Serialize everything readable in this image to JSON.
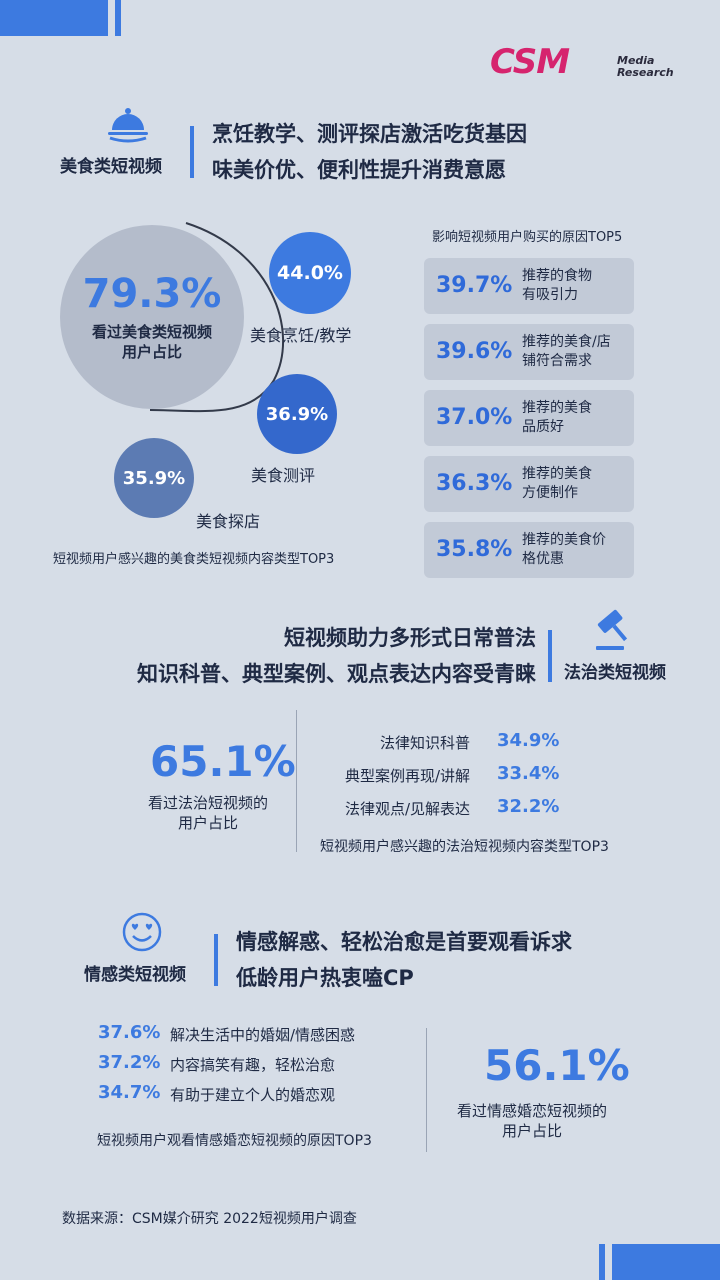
{
  "brand": {
    "name": "CSM",
    "sub_line1": "Media",
    "sub_line2": "Research",
    "color": "#d6246e"
  },
  "colors": {
    "accent": "#3d7ae0",
    "dark_blue": "#2f6ad9",
    "gray_bubble": "#b4bccb",
    "slate_bubble": "#5c7bb3"
  },
  "food": {
    "label": "美食类短视频",
    "icon": "cloche-icon",
    "title_line1": "烹饪教学、测评探店激活吃货基因",
    "title_line2": "味美价优、便利性提升消费意愿",
    "reasons_title": "影响短视频用户购买的原因TOP5",
    "content_caption": "短视频用户感兴趣的美食类短视频内容类型TOP3"
  },
  "law": {
    "label": "法治类短视频",
    "icon": "gavel-icon",
    "title_line1": "短视频助力多形式日常普法",
    "title_line2": "知识科普、典型案例、观点表达内容受青睐",
    "content_caption": "短视频用户感兴趣的法治短视频内容类型TOP3"
  },
  "emotion": {
    "label": "情感类短视频",
    "icon": "smile-heart-eyes-icon",
    "title_line1": "情感解惑、轻松治愈是首要观看诉求",
    "title_line2": "低龄用户热衷嗑CP",
    "reasons_caption": "短视频用户观看情感婚恋短视频的原因TOP3"
  },
  "source": "数据来源：CSM媒介研究 2022短视频用户调查",
  "chart_data": [
    {
      "type": "bar",
      "section": "food",
      "headline_value": "79.3%",
      "headline_label_line1": "看过美食类短视频",
      "headline_label_line2": "用户占比",
      "categories": [
        "美食烹饪/教学",
        "美食测评",
        "美食探店"
      ],
      "values": [
        44.0,
        36.9,
        35.9
      ],
      "value_labels": [
        "44.0%",
        "36.9%",
        "35.9%"
      ],
      "unit": "%"
    },
    {
      "type": "table",
      "section": "food",
      "categories": [
        [
          "推荐的食物",
          "有吸引力"
        ],
        [
          "推荐的美食/店",
          "铺符合需求"
        ],
        [
          "推荐的美食",
          "品质好"
        ],
        [
          "推荐的美食",
          "方便制作"
        ],
        [
          "推荐的美食价",
          "格优惠"
        ]
      ],
      "values": [
        39.7,
        39.6,
        37.0,
        36.3,
        35.8
      ],
      "value_labels": [
        "39.7%",
        "39.6%",
        "37.0%",
        "36.3%",
        "35.8%"
      ],
      "unit": "%"
    },
    {
      "type": "table",
      "section": "law",
      "headline_value": "65.1%",
      "headline_label_line1": "看过法治短视频的",
      "headline_label_line2": "用户占比",
      "categories": [
        "法律知识科普",
        "典型案例再现/讲解",
        "法律观点/见解表达"
      ],
      "values": [
        34.9,
        33.4,
        32.2
      ],
      "value_labels": [
        "34.9%",
        "33.4%",
        "32.2%"
      ],
      "unit": "%"
    },
    {
      "type": "table",
      "section": "emotion",
      "headline_value": "56.1%",
      "headline_label_line1": "看过情感婚恋短视频的",
      "headline_label_line2": "用户占比",
      "categories": [
        "解决生活中的婚姻/情感困惑",
        "内容搞笑有趣，轻松治愈",
        "有助于建立个人的婚恋观"
      ],
      "values": [
        37.6,
        37.2,
        34.7
      ],
      "value_labels": [
        "37.6%",
        "37.2%",
        "34.7%"
      ],
      "unit": "%"
    }
  ]
}
